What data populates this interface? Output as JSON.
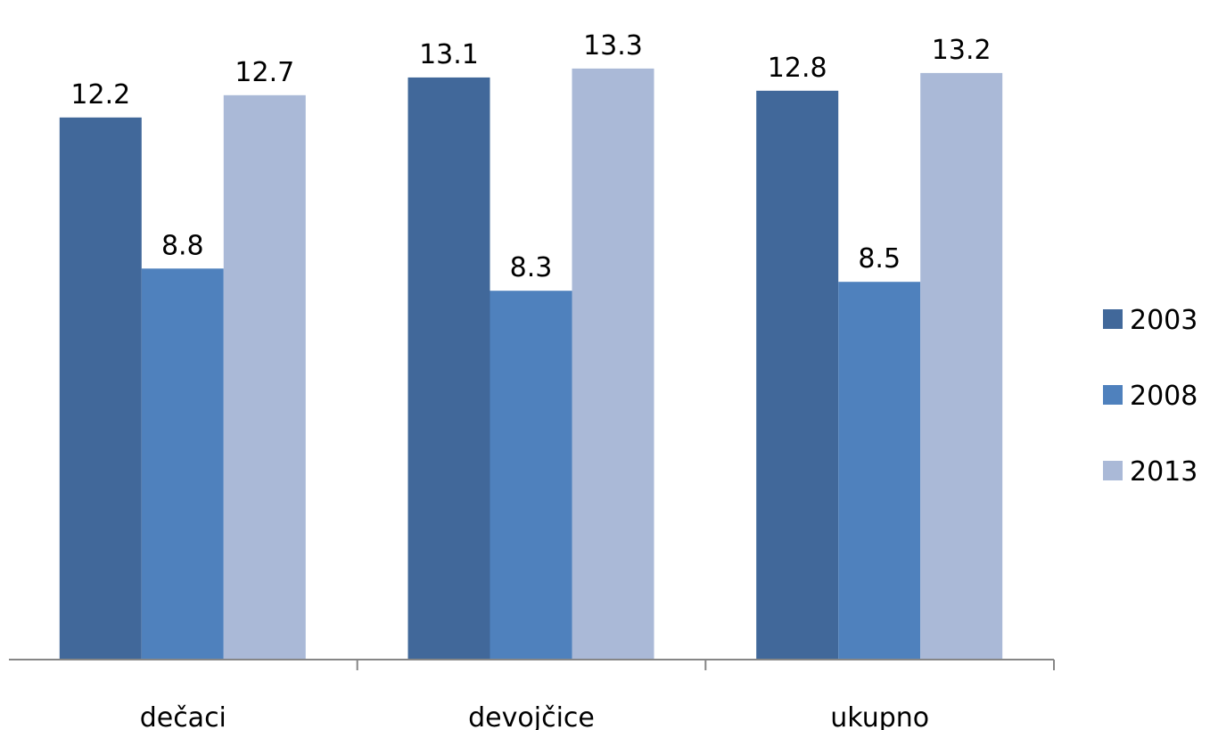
{
  "chart_data": {
    "type": "bar",
    "categories": [
      "dečaci",
      "devojčice",
      "ukupno"
    ],
    "series": [
      {
        "name": "2003",
        "values": [
          12.2,
          13.1,
          12.8
        ],
        "color": "#41689A"
      },
      {
        "name": "2008",
        "values": [
          8.8,
          8.3,
          8.5
        ],
        "color": "#4F81BD"
      },
      {
        "name": "2013",
        "values": [
          12.7,
          13.3,
          13.2
        ],
        "color": "#AAB9D7"
      }
    ],
    "data_labels": true,
    "ylim": [
      0,
      13.9
    ],
    "y_axis_visible": false,
    "grid": false,
    "legend_position": "right",
    "axis_color": "#868686"
  }
}
